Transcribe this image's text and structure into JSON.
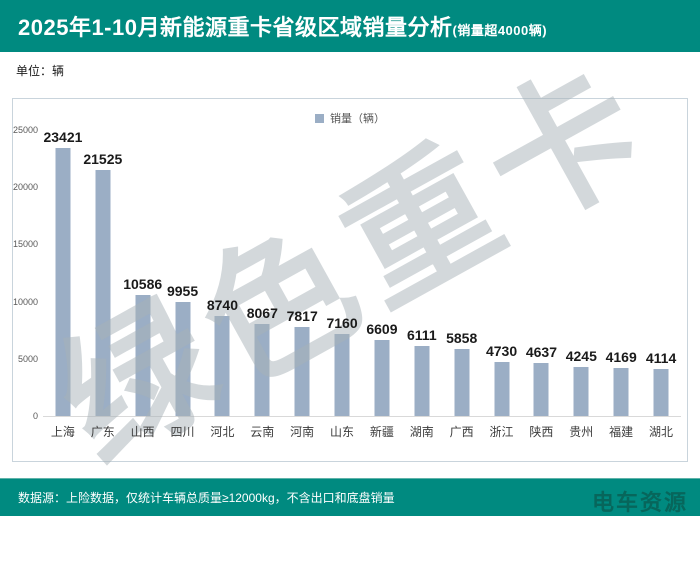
{
  "header": {
    "title": "2025年1-10月新能源重卡省级区域销量分析",
    "title_suffix": "(销量超4000辆)"
  },
  "unit_label": "单位：辆",
  "legend": {
    "label": "销量（辆）"
  },
  "watermark": {
    "text": "绿色重卡"
  },
  "chart_data": {
    "type": "bar",
    "title": "2025年1-10月新能源重卡省级区域销量分析(销量超4000辆)",
    "categories": [
      "上海",
      "广东",
      "山西",
      "四川",
      "河北",
      "云南",
      "河南",
      "山东",
      "新疆",
      "湖南",
      "广西",
      "浙江",
      "陕西",
      "贵州",
      "福建",
      "湖北"
    ],
    "values": [
      23421,
      21525,
      10586,
      9955,
      8740,
      8067,
      7817,
      7160,
      6609,
      6111,
      5858,
      4730,
      4637,
      4245,
      4169,
      4114
    ],
    "series_name": "销量（辆）",
    "xlabel": "",
    "ylabel": "单位：辆",
    "ylim": [
      0,
      25000
    ],
    "yticks": [
      0,
      5000,
      10000,
      15000,
      20000,
      25000
    ],
    "grid": false,
    "legend_position": "top-center",
    "data_labels": true
  },
  "footer": {
    "source_note": "数据源：上险数据，仅统计车辆总质量≥12000kg，不含出口和底盘销量",
    "logo_text": "电车资源"
  },
  "colors": {
    "header_bg": "#008A80",
    "footer_bg": "#008A80",
    "bar": "#9BAEC5",
    "border": "#C9D4DC",
    "axis_text": "#595959",
    "value_text": "#1A1A1A",
    "logo_text": "rgba(8,95,85,0.85)"
  }
}
